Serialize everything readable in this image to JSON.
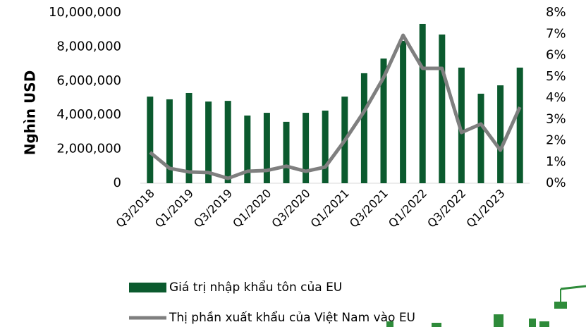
{
  "chart_data": {
    "type": "bar",
    "y_label": "Nghìn USD",
    "categories": [
      "Q3/2018",
      null,
      "Q1/2019",
      null,
      "Q3/2019",
      null,
      "Q1/2020",
      null,
      "Q3/2020",
      null,
      "Q1/2021",
      null,
      "Q3/2021",
      null,
      "Q1/2022",
      null,
      "Q3/2022",
      null,
      "Q1/2023",
      null
    ],
    "series": [
      {
        "name": "Giá trị nhập khẩu tôn của EU",
        "type": "bar",
        "color": "#0b5a2e",
        "values": [
          5080000,
          4920000,
          5290000,
          4790000,
          4830000,
          3970000,
          4130000,
          3600000,
          4130000,
          4260000,
          5080000,
          6450000,
          7310000,
          8350000,
          9340000,
          8720000,
          6780000,
          5250000,
          5740000,
          6780000
        ]
      },
      {
        "name": "Thị phần xuất khẩu của Việt Nam vào EU",
        "type": "line",
        "axis": "y2",
        "color": "#7f7f7f",
        "values": [
          1.45,
          0.7,
          0.53,
          0.5,
          0.23,
          0.56,
          0.6,
          0.8,
          0.56,
          0.76,
          2.0,
          3.37,
          4.96,
          6.94,
          5.39,
          5.39,
          2.38,
          2.78,
          1.55,
          3.57
        ]
      }
    ],
    "ylim": [
      0,
      10000000
    ],
    "yticks": [
      0,
      {
        "value": 2000000,
        "label": "2,000,000"
      },
      {
        "value": 4000000,
        "label": "4,000,000"
      },
      {
        "value": 6000000,
        "label": "6,000,000"
      },
      {
        "value": 8000000,
        "label": "8,000,000"
      },
      {
        "value": 10000000,
        "label": "10,000,000"
      }
    ],
    "y2lim": [
      0,
      8
    ],
    "y2ticks": [
      {
        "value": 0,
        "label": "0%"
      },
      {
        "value": 1,
        "label": "1%"
      },
      {
        "value": 2,
        "label": "2%"
      },
      {
        "value": 3,
        "label": "3%"
      },
      {
        "value": 4,
        "label": "4%"
      },
      {
        "value": 5,
        "label": "5%"
      },
      {
        "value": 6,
        "label": "6%"
      },
      {
        "value": 7,
        "label": "7%"
      },
      {
        "value": 8,
        "label": "8%"
      }
    ],
    "grid": false,
    "legend": "bottom"
  }
}
